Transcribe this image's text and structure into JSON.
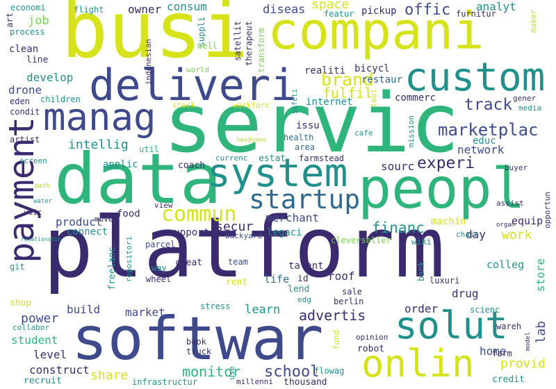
{
  "palette": {
    "navy": "#3b2a6e",
    "indigo": "#3e4a8b",
    "blue": "#2f6a8e",
    "teal": "#21908c",
    "green": "#2fb47c",
    "lime": "#7ad151",
    "yellow": "#d6e21a",
    "pale": "#b5de2b"
  },
  "words": [
    {
      "text": "platform",
      "color": "navy"
    },
    {
      "text": "servic",
      "color": "green"
    },
    {
      "text": "busi",
      "color": "yellow"
    },
    {
      "text": "compani",
      "color": "yellow"
    },
    {
      "text": "softwar",
      "color": "indigo"
    },
    {
      "text": "data",
      "color": "green"
    },
    {
      "text": "peopl",
      "color": "green"
    },
    {
      "text": "deliveri",
      "color": "indigo"
    },
    {
      "text": "system",
      "color": "teal"
    },
    {
      "text": "custom",
      "color": "teal"
    },
    {
      "text": "payment",
      "color": "navy"
    },
    {
      "text": "manag",
      "color": "indigo"
    },
    {
      "text": "solut",
      "color": "teal"
    },
    {
      "text": "onlin",
      "color": "yellow"
    },
    {
      "text": "startup",
      "color": "blue"
    },
    {
      "text": "commun",
      "color": "yellow"
    },
    {
      "text": "marketplac",
      "color": "indigo"
    },
    {
      "text": "brand",
      "color": "yellow"
    },
    {
      "text": "track",
      "color": "indigo"
    },
    {
      "text": "experi",
      "color": "navy"
    },
    {
      "text": "offic",
      "color": "indigo"
    },
    {
      "text": "fulfil",
      "color": "yellow"
    },
    {
      "text": "intellig",
      "color": "teal"
    },
    {
      "text": "network",
      "color": "indigo"
    },
    {
      "text": "develop",
      "color": "teal"
    },
    {
      "text": "financ",
      "color": "teal"
    },
    {
      "text": "school",
      "color": "indigo"
    },
    {
      "text": "monitor",
      "color": "green"
    },
    {
      "text": "advertis",
      "color": "navy"
    },
    {
      "text": "power",
      "color": "indigo"
    },
    {
      "text": "student",
      "color": "green"
    },
    {
      "text": "level",
      "color": "navy"
    },
    {
      "text": "construct",
      "color": "navy"
    },
    {
      "text": "share",
      "color": "yellow"
    },
    {
      "text": "provid",
      "color": "yellow"
    },
    {
      "text": "lab",
      "color": "indigo"
    },
    {
      "text": "home",
      "color": "indigo"
    },
    {
      "text": "work",
      "color": "yellow"
    },
    {
      "text": "learn",
      "color": "teal"
    },
    {
      "text": "build",
      "color": "indigo"
    },
    {
      "text": "market",
      "color": "indigo"
    },
    {
      "text": "product",
      "color": "indigo"
    },
    {
      "text": "secur",
      "color": "navy"
    },
    {
      "text": "merchant",
      "color": "indigo"
    },
    {
      "text": "sourc",
      "color": "navy"
    },
    {
      "text": "space",
      "color": "yellow"
    },
    {
      "text": "diseas",
      "color": "indigo"
    },
    {
      "text": "consum",
      "color": "teal"
    },
    {
      "text": "owner",
      "color": "navy"
    },
    {
      "text": "applic",
      "color": "teal"
    },
    {
      "text": "analyt",
      "color": "teal"
    },
    {
      "text": "job",
      "color": "lime"
    },
    {
      "text": "drone",
      "color": "indigo"
    },
    {
      "text": "clean",
      "color": "navy"
    },
    {
      "text": "food",
      "color": "navy"
    },
    {
      "text": "store",
      "color": "green"
    },
    {
      "text": "order",
      "color": "navy"
    },
    {
      "text": "roof",
      "color": "navy"
    },
    {
      "text": "drug",
      "color": "navy"
    },
    {
      "text": "colleg",
      "color": "teal"
    },
    {
      "text": "equip",
      "color": "navy"
    },
    {
      "text": "day",
      "color": "navy"
    },
    {
      "text": "talent",
      "color": "navy"
    },
    {
      "text": "life",
      "color": "blue"
    },
    {
      "text": "connect",
      "color": "teal"
    },
    {
      "text": "support",
      "color": "navy"
    },
    {
      "text": "legaci",
      "color": "teal"
    },
    {
      "text": "machin",
      "color": "yellow"
    },
    {
      "text": "internet",
      "color": "teal"
    },
    {
      "text": "restaur",
      "color": "blue"
    },
    {
      "text": "realiti",
      "color": "navy"
    },
    {
      "text": "bicycl",
      "color": "navy"
    },
    {
      "text": "pickup",
      "color": "navy"
    },
    {
      "text": "issu",
      "color": "navy"
    },
    {
      "text": "health",
      "color": "blue"
    },
    {
      "text": "area",
      "color": "blue"
    },
    {
      "text": "commerc",
      "color": "navy"
    },
    {
      "text": "educ",
      "color": "teal"
    },
    {
      "text": "coach",
      "color": "navy"
    },
    {
      "text": "estat",
      "color": "teal"
    },
    {
      "text": "currenc",
      "color": "teal"
    },
    {
      "text": "cafe",
      "color": "teal"
    },
    {
      "text": "featur",
      "color": "teal"
    },
    {
      "text": "furnitur",
      "color": "navy"
    },
    {
      "text": "maker",
      "color": "pale"
    },
    {
      "text": "economi",
      "color": "teal"
    },
    {
      "text": "flight",
      "color": "teal"
    },
    {
      "text": "suppli",
      "color": "teal"
    },
    {
      "text": "satellit",
      "color": "navy"
    },
    {
      "text": "therapeut",
      "color": "navy"
    },
    {
      "text": "transform",
      "color": "lime"
    },
    {
      "text": "indonesian",
      "color": "navy"
    },
    {
      "text": "art",
      "color": "navy"
    },
    {
      "text": "process",
      "color": "teal"
    },
    {
      "text": "line",
      "color": "navy"
    },
    {
      "text": "well",
      "color": "lime"
    },
    {
      "text": "world",
      "color": "lime"
    },
    {
      "text": "children",
      "color": "teal"
    },
    {
      "text": "eden",
      "color": "navy"
    },
    {
      "text": "condit",
      "color": "navy"
    },
    {
      "text": "artist",
      "color": "navy"
    },
    {
      "text": "stock",
      "color": "yellow"
    },
    {
      "text": "workforc",
      "color": "yellow"
    },
    {
      "text": "safeti",
      "color": "teal"
    },
    {
      "text": "tool",
      "color": "yellow"
    },
    {
      "text": "gener",
      "color": "navy"
    },
    {
      "text": "media",
      "color": "teal"
    },
    {
      "text": "mission",
      "color": "teal"
    },
    {
      "text": "handymen",
      "color": "pale"
    },
    {
      "text": "util",
      "color": "green"
    },
    {
      "text": "farmstead",
      "color": "navy"
    },
    {
      "text": "screen",
      "color": "teal"
    },
    {
      "text": "path",
      "color": "pale"
    },
    {
      "text": "water",
      "color": "teal"
    },
    {
      "text": "voic",
      "color": "navy"
    },
    {
      "text": "view",
      "color": "navy"
    },
    {
      "text": "buyer",
      "color": "navy"
    },
    {
      "text": "move",
      "color": "navy"
    },
    {
      "text": "assist",
      "color": "navy"
    },
    {
      "text": "opportun",
      "color": "navy"
    },
    {
      "text": "organ",
      "color": "navy"
    },
    {
      "text": "chain",
      "color": "teal"
    },
    {
      "text": "relationship",
      "color": "teal"
    },
    {
      "text": "repositori",
      "color": "teal"
    },
    {
      "text": "backyard",
      "color": "indigo"
    },
    {
      "text": "parcel",
      "color": "indigo"
    },
    {
      "text": "cleverseller",
      "color": "lime"
    },
    {
      "text": "wiki",
      "color": "teal"
    },
    {
      "text": "git",
      "color": "teal"
    },
    {
      "text": "freelanc",
      "color": "teal"
    },
    {
      "text": "way",
      "color": "teal"
    },
    {
      "text": "creat",
      "color": "navy"
    },
    {
      "text": "team",
      "color": "indigo"
    },
    {
      "text": "wheel",
      "color": "navy"
    },
    {
      "text": "rent",
      "color": "yellow"
    },
    {
      "text": "id",
      "color": "navy"
    },
    {
      "text": "lend",
      "color": "teal"
    },
    {
      "text": "bank",
      "color": "teal"
    },
    {
      "text": "luxuri",
      "color": "navy"
    },
    {
      "text": "sale",
      "color": "navy"
    },
    {
      "text": "edg",
      "color": "teal"
    },
    {
      "text": "berlin",
      "color": "navy"
    },
    {
      "text": "scienc",
      "color": "teal"
    },
    {
      "text": "wareh",
      "color": "navy"
    },
    {
      "text": "shop",
      "color": "yellow"
    },
    {
      "text": "stress",
      "color": "teal"
    },
    {
      "text": "collabor",
      "color": "teal"
    },
    {
      "text": "opinion",
      "color": "navy"
    },
    {
      "text": "robot",
      "color": "navy"
    },
    {
      "text": "fund",
      "color": "yellow"
    },
    {
      "text": "farm",
      "color": "navy"
    },
    {
      "text": "model",
      "color": "navy"
    },
    {
      "text": "book",
      "color": "navy"
    },
    {
      "text": "truck",
      "color": "navy"
    },
    {
      "text": "recruit",
      "color": "teal"
    },
    {
      "text": "infrastructur",
      "color": "teal"
    },
    {
      "text": "use",
      "color": "teal"
    },
    {
      "text": "millenni",
      "color": "navy"
    },
    {
      "text": "flowag",
      "color": "teal"
    },
    {
      "text": "thousand",
      "color": "navy"
    },
    {
      "text": "credit",
      "color": "teal"
    }
  ]
}
